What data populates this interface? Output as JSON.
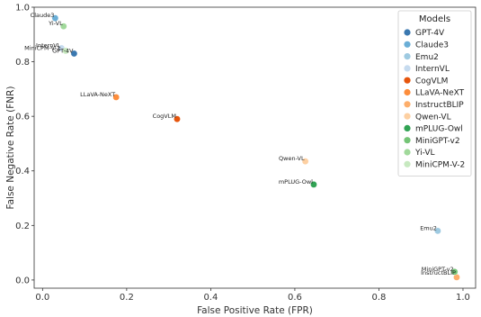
{
  "chart_data": {
    "type": "scatter",
    "title": "",
    "xlabel": "False Positive Rate (FPR)",
    "ylabel": "False Negative Rate (FNR)",
    "xlim": [
      -0.02,
      1.03
    ],
    "ylim": [
      -0.03,
      1.0
    ],
    "xticks": [
      "0.0",
      "0.2",
      "0.4",
      "0.6",
      "0.8",
      "1.0"
    ],
    "yticks": [
      "0.0",
      "0.2",
      "0.4",
      "0.6",
      "0.8",
      "1.0"
    ],
    "grid": false,
    "legend": {
      "title": "Models",
      "placement": "top-right"
    },
    "series": [
      {
        "name": "GPT-4V",
        "color": "#3a78b0",
        "x": 0.075,
        "y": 0.83
      },
      {
        "name": "Claude3",
        "color": "#6aaed6",
        "x": 0.03,
        "y": 0.96
      },
      {
        "name": "Emu2",
        "color": "#9ecae1",
        "x": 0.94,
        "y": 0.18
      },
      {
        "name": "InternVL",
        "color": "#c6dbef",
        "x": 0.045,
        "y": 0.85
      },
      {
        "name": "CogVLM",
        "color": "#e6550d",
        "x": 0.32,
        "y": 0.59
      },
      {
        "name": "LLaVA-NeXT",
        "color": "#fd8d3c",
        "x": 0.175,
        "y": 0.67
      },
      {
        "name": "InstructBLIP",
        "color": "#fdae6b",
        "x": 0.985,
        "y": 0.01
      },
      {
        "name": "Qwen-VL",
        "color": "#fdd0a2",
        "x": 0.625,
        "y": 0.435
      },
      {
        "name": "mPLUG-Owl",
        "color": "#31a354",
        "x": 0.645,
        "y": 0.35
      },
      {
        "name": "MiniGPT-v2",
        "color": "#74c476",
        "x": 0.98,
        "y": 0.03
      },
      {
        "name": "Yi-VL",
        "color": "#a1d99b",
        "x": 0.05,
        "y": 0.93
      },
      {
        "name": "MiniCPM-V-2",
        "color": "#c7e9c0",
        "x": 0.055,
        "y": 0.84
      }
    ],
    "point_labels": [
      {
        "text": "GPT-4V",
        "series": "GPT-4V"
      },
      {
        "text": "Claude3",
        "series": "Claude3"
      },
      {
        "text": "Emu2",
        "series": "Emu2"
      },
      {
        "text": "InternVL",
        "series": "InternVL"
      },
      {
        "text": "CogVLM",
        "series": "CogVLM"
      },
      {
        "text": "LLaVA-NeXT",
        "series": "LLaVA-NeXT"
      },
      {
        "text": "InstructBLIP",
        "series": "InstructBLIP"
      },
      {
        "text": "Qwen-VL",
        "series": "Qwen-VL"
      },
      {
        "text": "mPLUG-Owl",
        "series": "mPLUG-Owl"
      },
      {
        "text": "MiniGPT-v2",
        "series": "MiniGPT-v2"
      },
      {
        "text": "Yi-VL",
        "series": "Yi-VL"
      },
      {
        "text": "MiniCPM-V-2",
        "series": "MiniCPM-V-2"
      }
    ]
  }
}
